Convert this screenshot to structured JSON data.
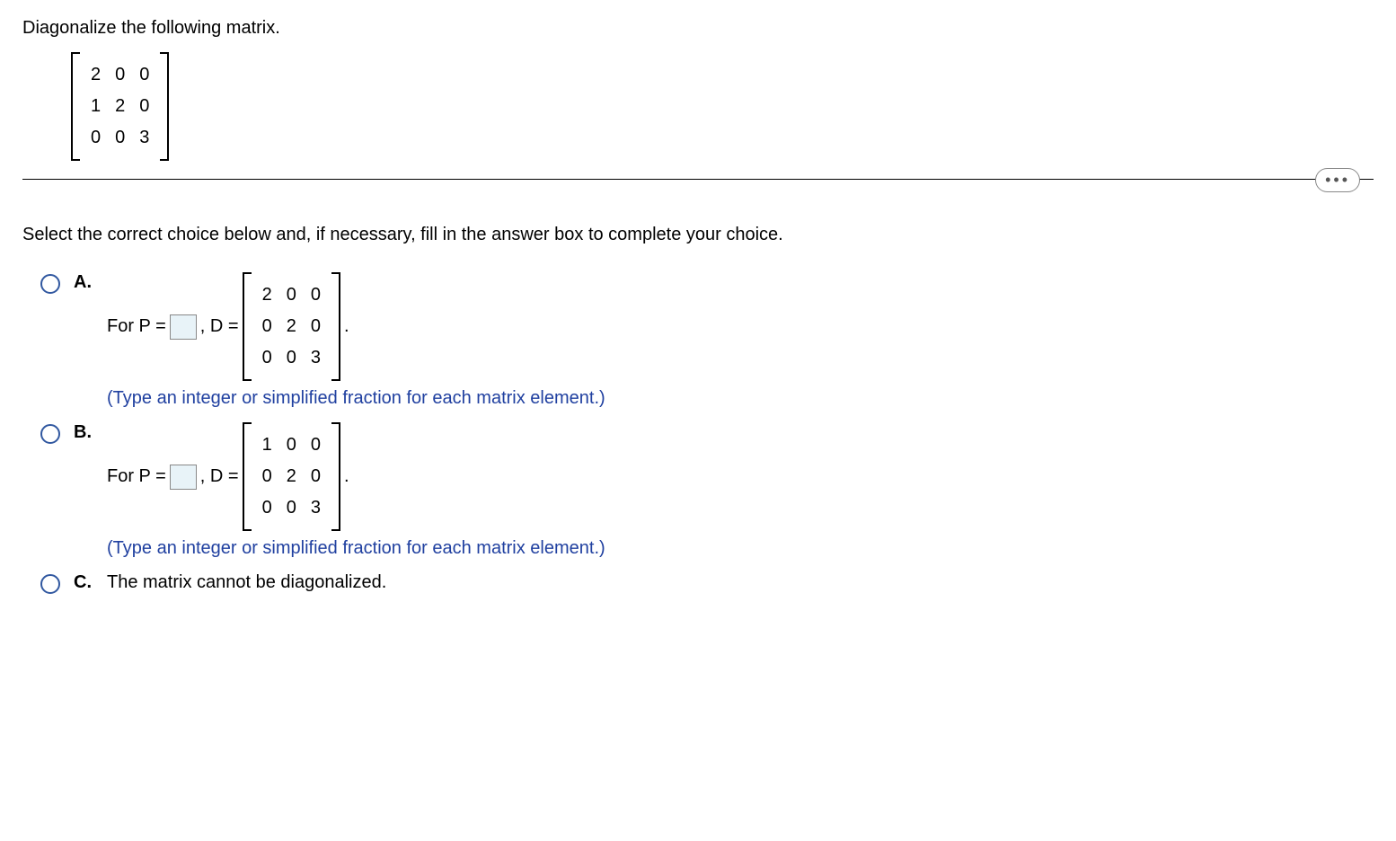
{
  "question": {
    "prompt": "Diagonalize the following matrix.",
    "matrix": [
      [
        "2",
        "0",
        "0"
      ],
      [
        "1",
        "2",
        "0"
      ],
      [
        "0",
        "0",
        "3"
      ]
    ],
    "instruction": "Select the correct choice below and, if necessary, fill in the answer box to complete your choice."
  },
  "choices": {
    "A": {
      "label": "A.",
      "prefix": "For P =",
      "mid": ", D =",
      "matrix": [
        [
          "2",
          "0",
          "0"
        ],
        [
          "0",
          "2",
          "0"
        ],
        [
          "0",
          "0",
          "3"
        ]
      ],
      "suffix": ".",
      "hint": "(Type an integer or simplified fraction for each matrix element.)"
    },
    "B": {
      "label": "B.",
      "prefix": "For P =",
      "mid": ", D =",
      "matrix": [
        [
          "1",
          "0",
          "0"
        ],
        [
          "0",
          "2",
          "0"
        ],
        [
          "0",
          "0",
          "3"
        ]
      ],
      "suffix": ".",
      "hint": "(Type an integer or simplified fraction for each matrix element.)"
    },
    "C": {
      "label": "C.",
      "text": "The matrix cannot be diagonalized."
    }
  },
  "colors": {
    "radio_border": "#3158a0",
    "hint_color": "#2040a0",
    "input_bg": "#e8f3f8"
  }
}
